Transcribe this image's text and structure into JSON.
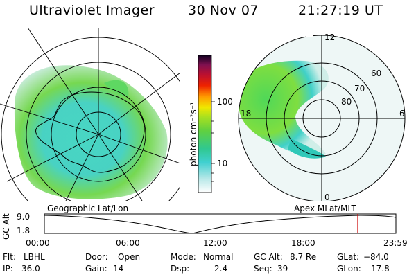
{
  "header": {
    "instrument": "Ultraviolet Imager",
    "date": "30 Nov 07",
    "time": "21:27:19 UT"
  },
  "colorbar": {
    "unit_label": "photon cm⁻²s⁻¹",
    "ticks": [
      "100",
      "10"
    ]
  },
  "left_panel": {
    "caption": "Geographic Lat/Lon"
  },
  "right_panel": {
    "caption": "Apex MLat/MLT",
    "mlt_labels": [
      "12",
      "18",
      "6",
      "0"
    ],
    "lat_labels": [
      "60",
      "70",
      "80"
    ]
  },
  "altitude_plot": {
    "axis_label": "GC Alt",
    "y_ticks": [
      "9.0",
      "1.8"
    ],
    "x_ticks": [
      "00:00",
      "06:00",
      "12:00",
      "18:00",
      "23:59"
    ],
    "marker_color": "#cc0000"
  },
  "status": {
    "filter": {
      "label": "Flt:",
      "value": "LBHL"
    },
    "ip": {
      "label": "IP:",
      "value": "36.0"
    },
    "door": {
      "label": "Door:",
      "value": "Open"
    },
    "gain": {
      "label": "Gain:",
      "value": "14"
    },
    "mode": {
      "label": "Mode:",
      "value": "Normal"
    },
    "dsp": {
      "label": "Dsp:",
      "value": "2.4"
    },
    "gc_alt": {
      "label": "GC Alt:",
      "value": "8.7 Re"
    },
    "seq": {
      "label": "Seq:",
      "value": "39"
    },
    "glat": {
      "label": "GLat:",
      "value": "−84.0"
    },
    "glon": {
      "label": "GLon:",
      "value": "17.8"
    }
  }
}
